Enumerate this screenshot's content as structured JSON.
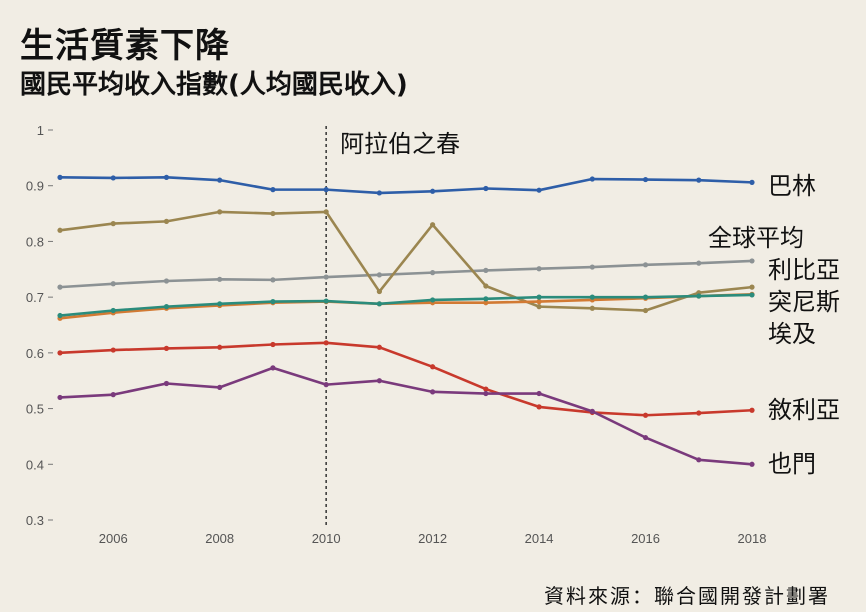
{
  "title": "生活質素下降",
  "subtitle": "國民平均收入指數(人均國民收入)",
  "source": "資料來源：聯合國開發計劃署",
  "chart_data": {
    "type": "line",
    "title": "生活質素下降",
    "subtitle": "國民平均收入指數(人均國民收入)",
    "x": [
      2005,
      2006,
      2007,
      2008,
      2009,
      2010,
      2011,
      2012,
      2013,
      2014,
      2015,
      2016,
      2017,
      2018
    ],
    "xticks": [
      2006,
      2008,
      2010,
      2012,
      2014,
      2016,
      2018
    ],
    "yticks": [
      0.3,
      0.4,
      0.5,
      0.6,
      0.7,
      0.8,
      0.9,
      1
    ],
    "ytick_labels": [
      "0.3",
      "0.4",
      "0.5",
      "0.6",
      "0.7",
      "0.8",
      "0.9",
      "1"
    ],
    "xlim": [
      2005,
      2018
    ],
    "ylim": [
      0.3,
      1.0
    ],
    "grid": false,
    "annotation": {
      "x": 2010,
      "label": "阿拉伯之春",
      "style": "dashed-vertical-line"
    },
    "series": [
      {
        "name": "巴林",
        "color": "#2e5ea8",
        "values": [
          0.915,
          0.914,
          0.915,
          0.91,
          0.893,
          0.893,
          0.887,
          0.89,
          0.895,
          0.892,
          0.912,
          0.911,
          0.91,
          0.906
        ]
      },
      {
        "name": "全球平均",
        "color": "#8c9294",
        "values": [
          0.718,
          0.724,
          0.729,
          0.732,
          0.731,
          0.736,
          0.74,
          0.744,
          0.748,
          0.751,
          0.754,
          0.758,
          0.761,
          0.765
        ]
      },
      {
        "name": "利比亞",
        "color": "#9b8650",
        "values": [
          0.82,
          0.832,
          0.836,
          0.853,
          0.85,
          0.853,
          0.71,
          0.83,
          0.72,
          0.683,
          0.68,
          0.676,
          0.708,
          0.718
        ]
      },
      {
        "name": "突尼斯",
        "color": "#d27a33",
        "values": [
          0.662,
          0.672,
          0.68,
          0.685,
          0.69,
          0.692,
          0.688,
          0.69,
          0.69,
          0.692,
          0.695,
          0.698,
          0.702,
          0.705
        ]
      },
      {
        "name": "埃及",
        "color": "#2b8c7c",
        "values": [
          0.667,
          0.676,
          0.683,
          0.688,
          0.692,
          0.693,
          0.688,
          0.695,
          0.697,
          0.7,
          0.7,
          0.7,
          0.702,
          0.704
        ]
      },
      {
        "name": "敘利亞",
        "color": "#c8392c",
        "values": [
          0.6,
          0.605,
          0.608,
          0.61,
          0.615,
          0.618,
          0.61,
          0.575,
          0.535,
          0.503,
          0.493,
          0.488,
          0.492,
          0.497
        ]
      },
      {
        "name": "也門",
        "color": "#7a3a7c",
        "values": [
          0.52,
          0.525,
          0.545,
          0.538,
          0.573,
          0.543,
          0.55,
          0.53,
          0.527,
          0.527,
          0.495,
          0.448,
          0.408,
          0.4
        ]
      }
    ],
    "labels": [
      {
        "text": "巴林"
      },
      {
        "text": "全球平均"
      },
      {
        "text": "利比亞"
      },
      {
        "text": "突尼斯"
      },
      {
        "text": "埃及"
      },
      {
        "text": "敘利亞"
      },
      {
        "text": "也門"
      }
    ]
  }
}
